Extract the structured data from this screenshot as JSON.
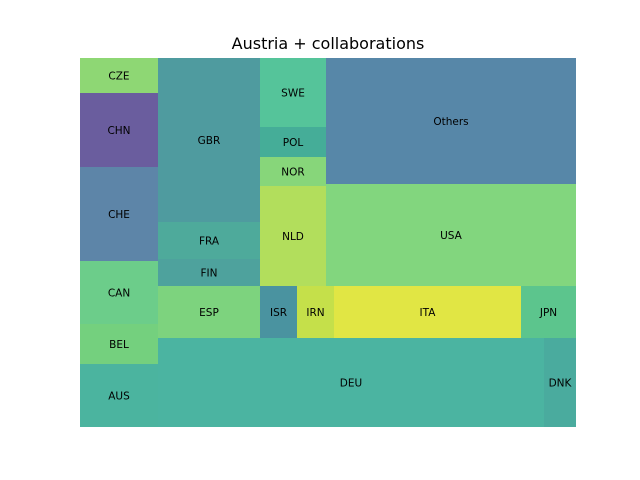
{
  "chart_data": {
    "type": "treemap",
    "title": "Austria + collaborations",
    "grid": false,
    "legend": "none",
    "tiles": [
      {
        "label": "AUS",
        "value": 312,
        "color": "#4bb49f"
      },
      {
        "label": "BEL",
        "value": 200,
        "color": "#74d07e"
      },
      {
        "label": "CAN",
        "value": 312,
        "color": "#6ccd8a"
      },
      {
        "label": "CHE",
        "value": 733,
        "color": "#5d85a8"
      },
      {
        "label": "CHN",
        "value": 585,
        "color": "#6a5d9e"
      },
      {
        "label": "CZE",
        "value": 265,
        "color": "#8ed774"
      },
      {
        "label": "DEU",
        "value": 3454,
        "color": "#4bb4a1"
      },
      {
        "label": "DNK",
        "value": 280,
        "color": "#4aab9e"
      },
      {
        "label": "ESP",
        "value": 525,
        "color": "#7dd37e"
      },
      {
        "label": "FIN",
        "value": 265,
        "color": "#4ea29d"
      },
      {
        "label": "FRA",
        "value": 376,
        "color": "#4eaa9b"
      },
      {
        "label": "GBR",
        "value": 1674,
        "color": "#4f9b9f"
      },
      {
        "label": "ISR",
        "value": 188,
        "color": "#4a93a0"
      },
      {
        "label": "IRN",
        "value": 188,
        "color": "#c5e04a"
      },
      {
        "label": "ITA",
        "value": 941,
        "color": "#e1e644"
      },
      {
        "label": "JPN",
        "value": 280,
        "color": "#5cc58d"
      },
      {
        "label": "NLD",
        "value": 660,
        "color": "#b2de5c"
      },
      {
        "label": "NOR",
        "value": 191,
        "color": "#87d67a"
      },
      {
        "label": "POL",
        "value": 191,
        "color": "#45ad98"
      },
      {
        "label": "SWE",
        "value": 437,
        "color": "#55c49a"
      },
      {
        "label": "USA",
        "value": 2574,
        "color": "#82d67e"
      },
      {
        "label": "Others",
        "value": 3146,
        "color": "#5787a8"
      }
    ]
  }
}
